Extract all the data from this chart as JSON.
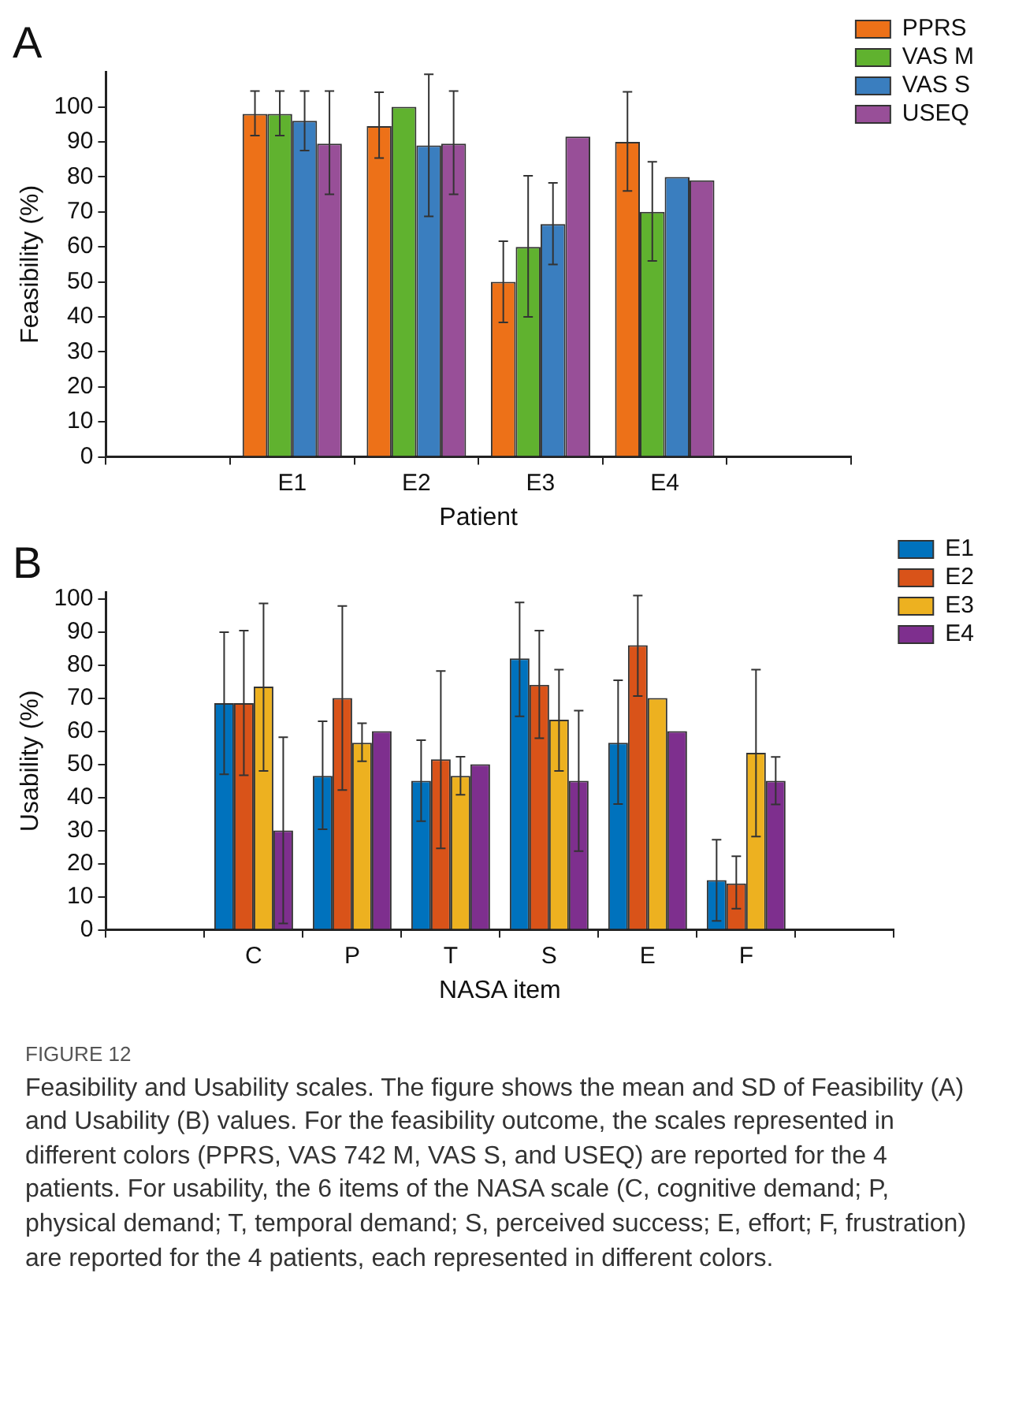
{
  "chart_data": [
    {
      "type": "bar",
      "title": "A",
      "xlabel": "Patient",
      "ylabel": "Feasibility (%)",
      "categories": [
        "E1",
        "E2",
        "E3",
        "E4"
      ],
      "legend": "top right",
      "grid": false,
      "ylim": [
        0,
        110
      ],
      "yticks": [
        0,
        10,
        20,
        30,
        40,
        50,
        60,
        70,
        80,
        90,
        100
      ],
      "series": [
        {
          "name": "PPRS",
          "color": "#ed7118",
          "values": [
            98,
            94.5,
            50,
            90
          ],
          "errors": [
            [
              91.8,
              104.5
            ],
            [
              85.4,
              104.2
            ],
            [
              38.4,
              61.6
            ],
            [
              76,
              104.3
            ]
          ]
        },
        {
          "name": "VAS M",
          "color": "#60b22f",
          "values": [
            98,
            100,
            60,
            70
          ],
          "errors": [
            [
              91.8,
              104.5
            ],
            null,
            [
              40,
              80.3
            ],
            [
              56,
              84.3
            ]
          ]
        },
        {
          "name": "VAS S",
          "color": "#3a7ebf",
          "values": [
            96,
            89,
            66.5,
            80
          ],
          "errors": [
            [
              87.5,
              104.5
            ],
            [
              68.7,
              109.3
            ],
            [
              55,
              78.3
            ],
            null
          ]
        },
        {
          "name": "USEQ",
          "color": "#984f98",
          "values": [
            89.5,
            89.5,
            91.5,
            79
          ],
          "errors": [
            [
              75,
              104.5
            ],
            [
              75,
              104.5
            ],
            null,
            null
          ]
        }
      ]
    },
    {
      "type": "bar",
      "title": "B",
      "xlabel": "NASA item",
      "ylabel": "Usability (%)",
      "categories": [
        "C",
        "P",
        "T",
        "S",
        "E",
        "F"
      ],
      "legend": "top right",
      "grid": false,
      "ylim": [
        0,
        102
      ],
      "yticks": [
        0,
        10,
        20,
        30,
        40,
        50,
        60,
        70,
        80,
        90,
        100
      ],
      "series": [
        {
          "name": "E1",
          "color": "#0072bd",
          "values": [
            68.5,
            46.5,
            45,
            82,
            56.5,
            15
          ],
          "errors": [
            [
              47,
              89.9
            ],
            [
              30.4,
              63
            ],
            [
              32.8,
              57.3
            ],
            [
              64.5,
              98.9
            ],
            [
              38,
              75.4
            ],
            [
              2.7,
              27.2
            ]
          ]
        },
        {
          "name": "E2",
          "color": "#d95319",
          "values": [
            68.5,
            70,
            51.5,
            74,
            86,
            14
          ],
          "errors": [
            [
              46.7,
              90.4
            ],
            [
              42.2,
              97.8
            ],
            [
              24.6,
              78.2
            ],
            [
              57.9,
              90.4
            ],
            [
              70.6,
              101
            ],
            [
              6.4,
              22.2
            ]
          ]
        },
        {
          "name": "E3",
          "color": "#edb120",
          "values": [
            73.5,
            56.5,
            46.5,
            63.5,
            70,
            53.5
          ],
          "errors": [
            [
              48,
              98.6
            ],
            [
              50.9,
              62.4
            ],
            [
              40.8,
              52.3
            ],
            [
              48,
              78.6
            ],
            null,
            [
              28.2,
              78.6
            ]
          ]
        },
        {
          "name": "E4",
          "color": "#7e2f8e",
          "values": [
            30,
            60,
            50,
            45,
            60,
            45
          ],
          "errors": [
            [
              1.9,
              58.2
            ],
            null,
            null,
            [
              23.8,
              66.2
            ],
            null,
            [
              37.9,
              52.2
            ]
          ]
        }
      ],
      "annotations": [
        "FIGURE 12",
        "Feasibility and Usability scales. The figure shows the mean and SD of Feasibility (A) and Usability (B) values. For the feasibility outcome, the scales represented in different colors (PPRS, VAS 742 M, VAS S, and USEQ) are reported for the 4 patients. For usability, the 6 items of the NASA scale (C, cognitive demand; P, physical demand; T, temporal demand; S, perceived success; E, effort; F, frustration) are reported for the 4 patients, each represented in different colors."
      ]
    }
  ]
}
